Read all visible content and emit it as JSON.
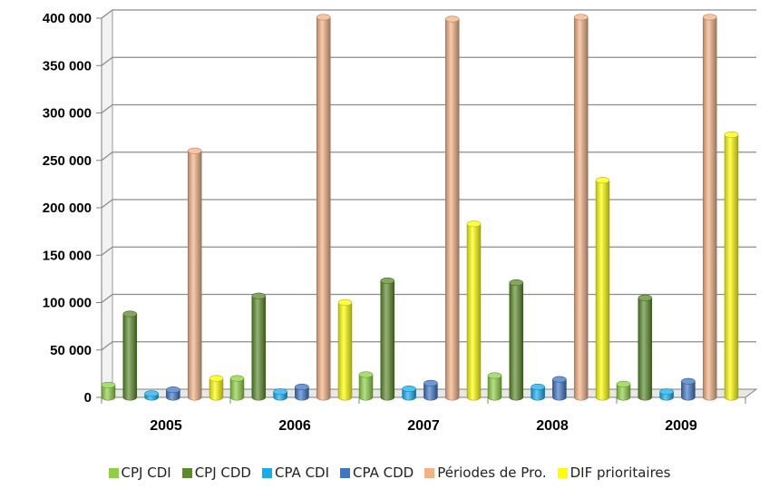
{
  "chart_data": {
    "type": "bar",
    "categories": [
      "2005",
      "2006",
      "2007",
      "2008",
      "2009"
    ],
    "series": [
      {
        "name": "CPJ CDI",
        "color": "#8ED045",
        "values": [
          13000,
          20000,
          24000,
          23000,
          14000
        ]
      },
      {
        "name": "CPJ CDD",
        "color": "#5A8A2A",
        "values": [
          88000,
          107000,
          123000,
          121000,
          105000
        ]
      },
      {
        "name": "CPA CDI",
        "color": "#14AEEF",
        "values": [
          4000,
          6000,
          9000,
          11000,
          6000
        ]
      },
      {
        "name": "CPA CDD",
        "color": "#3E77C8",
        "values": [
          8000,
          11000,
          15000,
          19000,
          17000
        ]
      },
      {
        "name": "Périodes de Pro.",
        "color": "#F4B183",
        "values": [
          260000,
          401000,
          399000,
          401000,
          401000
        ]
      },
      {
        "name": "DIF prioritaires",
        "color": "#FFFF00",
        "values": [
          20000,
          100000,
          183000,
          229000,
          277000
        ]
      }
    ],
    "yticks": [
      "0",
      "50 000",
      "100 000",
      "150 000",
      "200 000",
      "250 000",
      "300 000",
      "350 000",
      "400 000"
    ],
    "ylim": [
      0,
      400000
    ],
    "grid": true,
    "legend_position": "bottom"
  }
}
